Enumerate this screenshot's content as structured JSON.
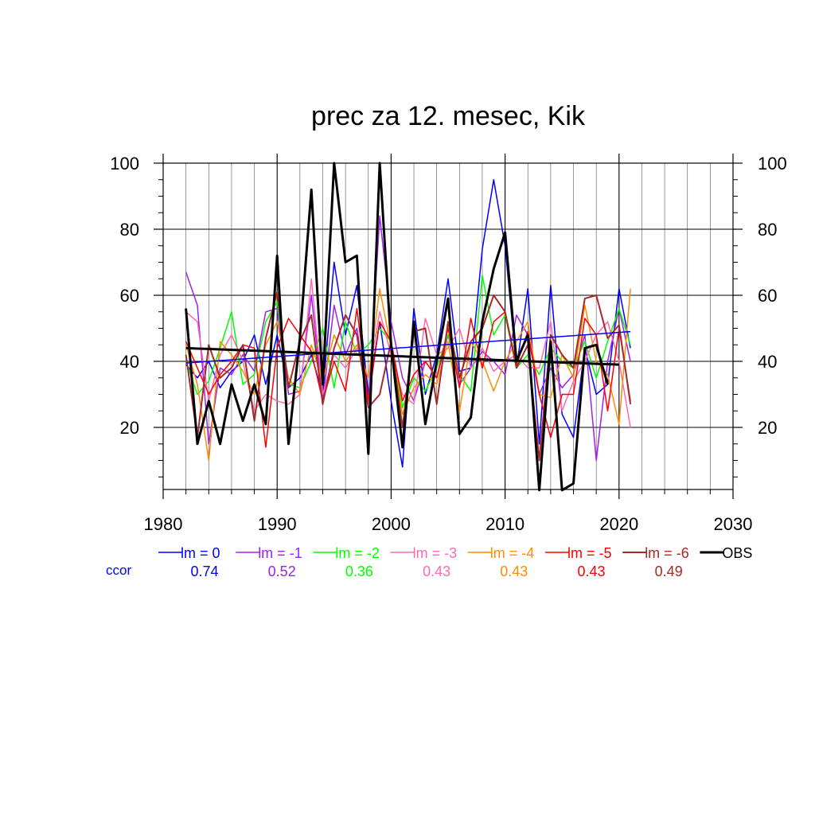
{
  "chart_data": {
    "type": "line",
    "title": "prec za 12. mesec, Kik",
    "xlim": [
      1980,
      2030
    ],
    "ylim": [
      0,
      100
    ],
    "x_ticks": [
      1980,
      1990,
      2000,
      2010,
      2020,
      2030
    ],
    "y_ticks": [
      20,
      40,
      60,
      80,
      100
    ],
    "grid": true,
    "legend_position": "bottom",
    "ccor_label": "ccor",
    "series": [
      {
        "name": "lm = 0",
        "color": "#0000ff",
        "ccor": "0.74",
        "width": 1.5,
        "x": [
          1982,
          1983,
          1984,
          1985,
          1986,
          1987,
          1988,
          1989,
          1990,
          1991,
          1992,
          1993,
          1994,
          1995,
          1996,
          1997,
          1998,
          1999,
          2000,
          2001,
          2002,
          2003,
          2004,
          2005,
          2006,
          2007,
          2008,
          2009,
          2010,
          2011,
          2012,
          2013,
          2014,
          2015,
          2016,
          2017,
          2018,
          2019,
          2020,
          2021
        ],
        "y": [
          39,
          35,
          40,
          32,
          37,
          40,
          48,
          33,
          48,
          32,
          35,
          42,
          30,
          70,
          48,
          63,
          30,
          52,
          28,
          8,
          56,
          30,
          42,
          65,
          37,
          38,
          74,
          95,
          75,
          38,
          62,
          15,
          63,
          24,
          17,
          44,
          30,
          33,
          62,
          44
        ]
      },
      {
        "name": "lm = -1",
        "color": "#a020f0",
        "ccor": "0.52",
        "width": 1.5,
        "x": [
          1982,
          1983,
          1984,
          1985,
          1986,
          1987,
          1988,
          1989,
          1990,
          1991,
          1992,
          1993,
          1994,
          1995,
          1996,
          1997,
          1998,
          1999,
          2000,
          2001,
          2002,
          2003,
          2004,
          2005,
          2006,
          2007,
          2008,
          2009,
          2010,
          2011,
          2012,
          2013,
          2014,
          2015,
          2016,
          2017,
          2018,
          2019,
          2020,
          2021
        ],
        "y": [
          67,
          57,
          15,
          38,
          36,
          42,
          37,
          55,
          56,
          30,
          31,
          60,
          28,
          57,
          42,
          50,
          27,
          84,
          52,
          35,
          28,
          40,
          35,
          48,
          33,
          38,
          43,
          40,
          36,
          54,
          48,
          30,
          38,
          32,
          36,
          48,
          10,
          40,
          56,
          40
        ]
      },
      {
        "name": "lm = -2",
        "color": "#00ff00",
        "ccor": "0.36",
        "width": 1.5,
        "x": [
          1982,
          1983,
          1984,
          1985,
          1986,
          1987,
          1988,
          1989,
          1990,
          1991,
          1992,
          1993,
          1994,
          1995,
          1996,
          1997,
          1998,
          1999,
          2000,
          2001,
          2002,
          2003,
          2004,
          2005,
          2006,
          2007,
          2008,
          2009,
          2010,
          2011,
          2012,
          2013,
          2014,
          2015,
          2016,
          2017,
          2018,
          2019,
          2020,
          2021
        ],
        "y": [
          40,
          30,
          34,
          44,
          55,
          33,
          36,
          52,
          58,
          33,
          32,
          40,
          50,
          32,
          52,
          42,
          45,
          50,
          46,
          26,
          35,
          31,
          38,
          48,
          36,
          31,
          66,
          48,
          54,
          38,
          42,
          36,
          44,
          40,
          38,
          46,
          35,
          46,
          56,
          45
        ]
      },
      {
        "name": "lm = -3",
        "color": "#ff69b4",
        "ccor": "0.43",
        "width": 1.5,
        "x": [
          1982,
          1983,
          1984,
          1985,
          1986,
          1987,
          1988,
          1989,
          1990,
          1991,
          1992,
          1993,
          1994,
          1995,
          1996,
          1997,
          1998,
          1999,
          2000,
          2001,
          2002,
          2003,
          2004,
          2005,
          2006,
          2007,
          2008,
          2009,
          2010,
          2011,
          2012,
          2013,
          2014,
          2015,
          2016,
          2017,
          2018,
          2019,
          2020,
          2021
        ],
        "y": [
          55,
          52,
          28,
          42,
          48,
          40,
          25,
          30,
          28,
          27,
          30,
          65,
          30,
          42,
          38,
          44,
          35,
          55,
          42,
          30,
          27,
          53,
          42,
          44,
          50,
          38,
          44,
          37,
          40,
          42,
          38,
          38,
          52,
          25,
          34,
          40,
          48,
          52,
          40,
          20
        ]
      },
      {
        "name": "lm = -4",
        "color": "#ff8c00",
        "ccor": "0.43",
        "width": 1.5,
        "x": [
          1982,
          1983,
          1984,
          1985,
          1986,
          1987,
          1988,
          1989,
          1990,
          1991,
          1992,
          1993,
          1994,
          1995,
          1996,
          1997,
          1998,
          1999,
          2000,
          2001,
          2002,
          2003,
          2004,
          2005,
          2006,
          2007,
          2008,
          2009,
          2010,
          2011,
          2012,
          2013,
          2014,
          2015,
          2016,
          2017,
          2018,
          2019,
          2020,
          2021
        ],
        "y": [
          45,
          33,
          10,
          46,
          42,
          37,
          30,
          45,
          52,
          35,
          30,
          45,
          34,
          48,
          40,
          45,
          35,
          62,
          44,
          24,
          32,
          36,
          33,
          46,
          25,
          46,
          40,
          31,
          40,
          46,
          52,
          30,
          29,
          42,
          35,
          57,
          40,
          36,
          21,
          62
        ]
      },
      {
        "name": "lm = -5",
        "color": "#ff0000",
        "ccor": "0.43",
        "width": 1.5,
        "x": [
          1982,
          1983,
          1984,
          1985,
          1986,
          1987,
          1988,
          1989,
          1990,
          1991,
          1992,
          1993,
          1994,
          1995,
          1996,
          1997,
          1998,
          1999,
          2000,
          2001,
          2002,
          2003,
          2004,
          2005,
          2006,
          2007,
          2008,
          2009,
          2010,
          2011,
          2012,
          2013,
          2014,
          2015,
          2016,
          2017,
          2018,
          2019,
          2020,
          2021
        ],
        "y": [
          46,
          38,
          30,
          36,
          40,
          45,
          44,
          14,
          44,
          53,
          48,
          43,
          28,
          40,
          31,
          56,
          28,
          52,
          46,
          28,
          36,
          40,
          35,
          50,
          32,
          53,
          38,
          52,
          55,
          39,
          49,
          30,
          17,
          30,
          30,
          53,
          48,
          25,
          50,
          28
        ]
      },
      {
        "name": "lm = -6",
        "color": "#a52a2a",
        "ccor": "0.49",
        "width": 2,
        "x": [
          1982,
          1983,
          1984,
          1985,
          1986,
          1987,
          1988,
          1989,
          1990,
          1991,
          1992,
          1993,
          1994,
          1995,
          1996,
          1997,
          1998,
          1999,
          2000,
          2001,
          2002,
          2003,
          2004,
          2005,
          2006,
          2007,
          2008,
          2009,
          2010,
          2011,
          2012,
          2013,
          2014,
          2015,
          2016,
          2017,
          2018,
          2019,
          2020,
          2021
        ],
        "y": [
          42,
          17,
          45,
          35,
          38,
          45,
          22,
          47,
          61,
          32,
          46,
          54,
          27,
          44,
          54,
          48,
          26,
          30,
          46,
          20,
          49,
          50,
          27,
          52,
          35,
          46,
          50,
          60,
          55,
          38,
          45,
          10,
          48,
          42,
          38,
          59,
          60,
          47,
          51,
          27
        ]
      },
      {
        "name": "OBS",
        "color": "#000000",
        "width": 3,
        "x": [
          1982,
          1983,
          1984,
          1985,
          1986,
          1987,
          1988,
          1989,
          1990,
          1991,
          1992,
          1993,
          1994,
          1995,
          1996,
          1997,
          1998,
          1999,
          2000,
          2001,
          2002,
          2003,
          2004,
          2005,
          2006,
          2007,
          2008,
          2009,
          2010,
          2011,
          2012,
          2013,
          2014,
          2015,
          2016,
          2017,
          2018,
          2019
        ],
        "y": [
          56,
          15,
          28,
          15,
          33,
          22,
          33,
          21,
          72,
          15,
          47,
          92,
          33,
          100,
          70,
          72,
          12,
          100,
          45,
          14,
          52,
          21,
          40,
          59,
          18,
          23,
          52,
          68,
          79,
          40,
          48,
          1,
          46,
          1,
          3,
          44,
          45,
          33
        ]
      }
    ],
    "trend_lines": [
      {
        "series": "lm = 0",
        "color": "#0000ff",
        "width": 1.5,
        "x": [
          1982,
          2021
        ],
        "y": [
          39.5,
          49
        ]
      },
      {
        "series": "OBS",
        "color": "#000000",
        "width": 3,
        "x": [
          1982,
          2020
        ],
        "y": [
          44,
          39
        ]
      }
    ]
  }
}
